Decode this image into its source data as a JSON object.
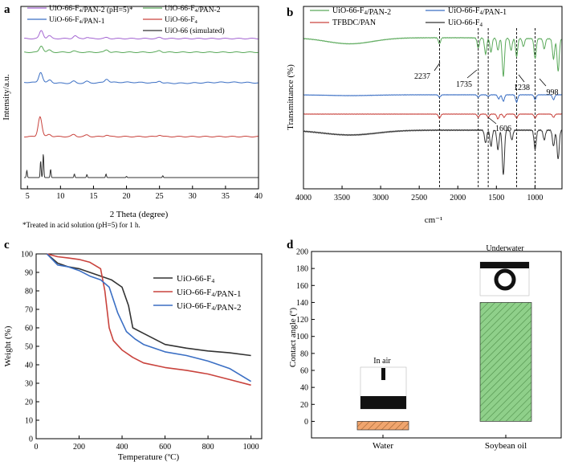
{
  "colors": {
    "axis": "#000000",
    "purple": "#a466d2",
    "green": "#5aa95a",
    "blue": "#3b6fc4",
    "red": "#c9433d",
    "black": "#333333",
    "orange_bar": "#f0a56e",
    "green_bar": "#8fd08a"
  },
  "chart_data": [
    {
      "panel": "a",
      "type": "line",
      "title": "",
      "xlabel": "2 Theta (degree)",
      "ylabel": "Intensity/a.u.",
      "xlim": [
        4,
        40
      ],
      "xticks": [
        5,
        10,
        15,
        20,
        25,
        30,
        35,
        40
      ],
      "legend": [
        "UiO-66-F4/PAN-2 (pH=5)*",
        "UiO-66-F4/PAN-2",
        "UiO-66-F4/PAN-1",
        "UiO-66-F4",
        "UiO-66 (simulated)"
      ],
      "footnote": "*Treated in acid solution (pH=5) for 1 h.",
      "series": [
        {
          "name": "UiO-66-F4/PAN-2 (pH=5)*",
          "offset": 6.5,
          "peaks": [
            [
              7.1,
              1.0
            ],
            [
              8.3,
              0.35
            ],
            [
              12.2,
              0.35
            ],
            [
              14.0,
              0.15
            ],
            [
              17.0,
              0.12
            ],
            [
              25.0,
              0.12
            ]
          ]
        },
        {
          "name": "UiO-66-F4/PAN-2",
          "offset": 5.5,
          "peaks": [
            [
              7.1,
              0.8
            ],
            [
              8.3,
              0.25
            ],
            [
              12.0,
              0.15
            ],
            [
              17.0,
              0.3
            ],
            [
              25.0,
              0.2
            ]
          ]
        },
        {
          "name": "UiO-66-F4/PAN-1",
          "offset": 4.1,
          "peaks": [
            [
              7.0,
              1.3
            ],
            [
              8.4,
              0.35
            ],
            [
              12.0,
              0.25
            ],
            [
              14.0,
              0.2
            ],
            [
              17.0,
              0.45
            ],
            [
              25.0,
              0.25
            ]
          ]
        },
        {
          "name": "UiO-66-F4",
          "offset": 1.9,
          "peaks": [
            [
              6.9,
              2.5
            ],
            [
              8.3,
              0.3
            ],
            [
              12.0,
              0.25
            ],
            [
              14.0,
              0.2
            ],
            [
              17.0,
              0.2
            ],
            [
              25.0,
              0.2
            ]
          ]
        },
        {
          "name": "UiO-66 (simulated)",
          "offset": 0.0,
          "peaks": [
            [
              4.9,
              0.6
            ],
            [
              7.0,
              1.4
            ],
            [
              7.4,
              2.0
            ],
            [
              8.5,
              0.7
            ],
            [
              12.1,
              0.3
            ],
            [
              14.0,
              0.25
            ],
            [
              16.9,
              0.3
            ],
            [
              20.0,
              0.1
            ],
            [
              25.5,
              0.15
            ]
          ]
        }
      ]
    },
    {
      "panel": "b",
      "type": "line",
      "xlabel": "cm⁻¹",
      "ylabel": "Transmittance (%)",
      "xlim": [
        4000,
        650
      ],
      "xticks": [
        4000,
        3500,
        3000,
        2500,
        2000,
        1500,
        1000
      ],
      "legend": [
        "UiO-66-F4/PAN-2",
        "UiO-66-F4/PAN-1",
        "TFBDC/PAN",
        "UiO-66-F4"
      ],
      "reference_lines": [
        2237,
        1735,
        1606,
        1238,
        998
      ],
      "annotations": [
        "2237",
        "1735",
        "1606",
        "1238",
        "998"
      ],
      "series": [
        {
          "name": "UiO-66-F4/PAN-2",
          "base": 3.6,
          "broad": [
            [
              3400,
              0.3,
              300
            ]
          ],
          "bands": [
            [
              2237,
              0.3
            ],
            [
              1735,
              0.5
            ],
            [
              1640,
              0.8
            ],
            [
              1570,
              0.7
            ],
            [
              1480,
              0.6
            ],
            [
              1410,
              1.9
            ],
            [
              1310,
              0.6
            ],
            [
              1238,
              0.9
            ],
            [
              1150,
              0.4
            ],
            [
              998,
              1.0
            ],
            [
              880,
              0.5
            ],
            [
              760,
              1.0
            ],
            [
              700,
              1.6
            ]
          ]
        },
        {
          "name": "UiO-66-F4/PAN-1",
          "base": 2.2,
          "broad": [
            [
              3400,
              0.05,
              300
            ]
          ],
          "bands": [
            [
              2237,
              0.15
            ],
            [
              1735,
              0.15
            ],
            [
              1606,
              0.1
            ],
            [
              1470,
              0.25
            ],
            [
              1410,
              0.4
            ],
            [
              1238,
              0.45
            ],
            [
              998,
              0.3
            ],
            [
              760,
              0.3
            ]
          ]
        },
        {
          "name": "TFBDC/PAN",
          "base": 1.7,
          "broad": [],
          "bands": [
            [
              2237,
              0.25
            ],
            [
              1735,
              0.2
            ],
            [
              1606,
              0.2
            ],
            [
              1480,
              0.3
            ],
            [
              1400,
              0.2
            ],
            [
              1238,
              0.25
            ],
            [
              998,
              0.25
            ],
            [
              760,
              0.2
            ]
          ]
        },
        {
          "name": "UiO-66-F4",
          "base": 1.3,
          "broad": [
            [
              3400,
              0.15,
              350
            ]
          ],
          "bands": [
            [
              1640,
              0.4
            ],
            [
              1570,
              0.5
            ],
            [
              1480,
              0.6
            ],
            [
              1410,
              1.4
            ],
            [
              1300,
              0.3
            ],
            [
              998,
              0.6
            ],
            [
              880,
              0.3
            ],
            [
              760,
              0.5
            ],
            [
              700,
              0.9
            ]
          ]
        }
      ]
    },
    {
      "panel": "c",
      "type": "line",
      "xlabel": "Temperature (ºC)",
      "ylabel": "Weight (%)",
      "xlim": [
        0,
        1050
      ],
      "ylim": [
        0,
        100
      ],
      "xticks": [
        0,
        200,
        400,
        600,
        800,
        1000
      ],
      "yticks": [
        0,
        10,
        20,
        30,
        40,
        50,
        60,
        70,
        80,
        90,
        100
      ],
      "legend": [
        "UiO-66-F4",
        "UiO-66-F4/PAN-1",
        "UiO-66-F4/PAN-2"
      ],
      "series": [
        {
          "name": "UiO-66-F4",
          "x": [
            50,
            100,
            150,
            200,
            250,
            300,
            350,
            400,
            430,
            450,
            500,
            600,
            700,
            800,
            900,
            1000
          ],
          "y": [
            100,
            95,
            93,
            92,
            90,
            88,
            86,
            82,
            72,
            60,
            57,
            51,
            49,
            47.5,
            46.5,
            45
          ]
        },
        {
          "name": "UiO-66-F4/PAN-1",
          "x": [
            50,
            100,
            150,
            200,
            250,
            300,
            320,
            340,
            360,
            400,
            450,
            500,
            600,
            700,
            800,
            900,
            1000
          ],
          "y": [
            100,
            98.5,
            97.8,
            97,
            95.5,
            92,
            80,
            60,
            53,
            48,
            44,
            41,
            38.5,
            37,
            35,
            32,
            29
          ]
        },
        {
          "name": "UiO-66-F4/PAN-2",
          "x": [
            50,
            100,
            150,
            200,
            250,
            300,
            340,
            380,
            420,
            460,
            500,
            600,
            700,
            800,
            900,
            1000
          ],
          "y": [
            100,
            94,
            93,
            91,
            88,
            86,
            82,
            68,
            58,
            54,
            51,
            47,
            45,
            42,
            38,
            31
          ]
        }
      ]
    },
    {
      "panel": "d",
      "type": "bar",
      "xlabel": "",
      "ylabel": "Contact angle (º)",
      "ylim": [
        -10,
        200
      ],
      "yticks": [
        0,
        20,
        40,
        60,
        80,
        100,
        120,
        140,
        160,
        180,
        200
      ],
      "categories": [
        "Water",
        "Soybean oil"
      ],
      "values": [
        -10,
        140
      ],
      "annotations": [
        "In air",
        "Underwater"
      ]
    }
  ]
}
